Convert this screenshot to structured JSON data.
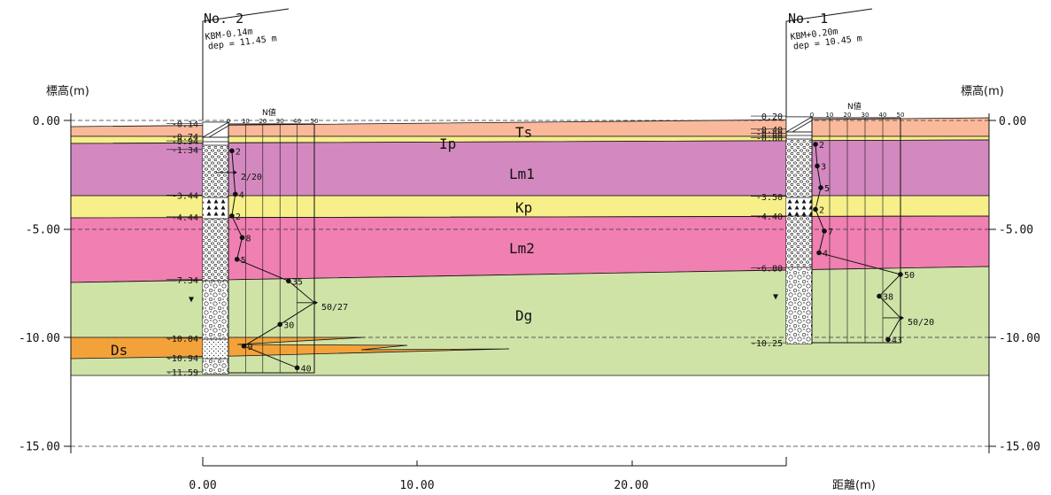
{
  "axis": {
    "left_title": "標高(m)",
    "right_title": "標高(m)",
    "x_title": "距離(m)",
    "y_ticks": [
      {
        "label": "0.00",
        "value": 0
      },
      {
        "label": "-5.00",
        "value": -5
      },
      {
        "label": "-10.00",
        "value": -10
      },
      {
        "label": "-15.00",
        "value": -15
      }
    ],
    "x_ticks": [
      {
        "label": "0.00",
        "value": 0
      },
      {
        "label": "10.00",
        "value": 10
      },
      {
        "label": "20.00",
        "value": 20
      }
    ]
  },
  "colors": {
    "Ts": "#f9b99a",
    "Ip": "#f6ef8a",
    "Lm1": "#d389bf",
    "Kp": "#f6ef8a",
    "Lm2": "#f07fb2",
    "Dg": "#cfe3a7",
    "Ds": "#f3a23a",
    "line": "#111111",
    "grid": "#333333"
  },
  "layers": [
    {
      "name": "Ts",
      "label": "Ts"
    },
    {
      "name": "Ip",
      "label": "Ip"
    },
    {
      "name": "Lm1",
      "label": "Lm1"
    },
    {
      "name": "Kp",
      "label": "Kp"
    },
    {
      "name": "Lm2",
      "label": "Lm2"
    },
    {
      "name": "Dg",
      "label": "Dg"
    },
    {
      "name": "Ds",
      "label": "Ds"
    }
  ],
  "boreholes": [
    {
      "id": "No. 2",
      "kbm": "KBM-0.14m",
      "depth": "dep = 11.45 m",
      "n_title": "N値",
      "n_scale": [
        "0",
        "10",
        "20",
        "30",
        "40",
        "50"
      ],
      "elevations": [
        "-0.14",
        "-0.74",
        "-0.94",
        "-1.34",
        "-3.44",
        "-4.44",
        "-7.34",
        "-10.04",
        "-10.94",
        "-11.59"
      ],
      "n_values": [
        {
          "label": "2",
          "n": 2,
          "elev": -1.4
        },
        {
          "label": "2/20",
          "n": 3,
          "elev": -2.4
        },
        {
          "label": "4",
          "n": 4,
          "elev": -3.4
        },
        {
          "label": "2",
          "n": 2,
          "elev": -4.4
        },
        {
          "label": "8",
          "n": 8,
          "elev": -5.4
        },
        {
          "label": "5",
          "n": 5,
          "elev": -6.4
        },
        {
          "label": "35",
          "n": 35,
          "elev": -7.4
        },
        {
          "label": "50/27",
          "n": 50,
          "elev": -8.4
        },
        {
          "label": "30",
          "n": 30,
          "elev": -9.4
        },
        {
          "label": "9",
          "n": 9,
          "elev": -10.4
        },
        {
          "label": "40",
          "n": 40,
          "elev": -11.4
        }
      ]
    },
    {
      "id": "No. 1",
      "kbm": "KBM+0.20m",
      "depth": "dep = 10.45 m",
      "n_title": "N値",
      "n_scale": [
        "0",
        "10",
        "20",
        "30",
        "40",
        "50"
      ],
      "elevations": [
        "0.20",
        "-0.40",
        "-0.60",
        "-0.80",
        "-3.50",
        "-4.40",
        "-6.80",
        "-10.25"
      ],
      "n_values": [
        {
          "label": "2",
          "n": 2,
          "elev": -1.1
        },
        {
          "label": "3",
          "n": 3,
          "elev": -2.1
        },
        {
          "label": "5",
          "n": 5,
          "elev": -3.1
        },
        {
          "label": "2",
          "n": 2,
          "elev": -4.1
        },
        {
          "label": "7",
          "n": 7,
          "elev": -5.1
        },
        {
          "label": "4",
          "n": 4,
          "elev": -6.1
        },
        {
          "label": "50",
          "n": 50,
          "elev": -7.1
        },
        {
          "label": "38",
          "n": 38,
          "elev": -8.1
        },
        {
          "label": "50/20",
          "n": 50,
          "elev": -9.1
        },
        {
          "label": "43",
          "n": 43,
          "elev": -10.1
        }
      ]
    }
  ]
}
